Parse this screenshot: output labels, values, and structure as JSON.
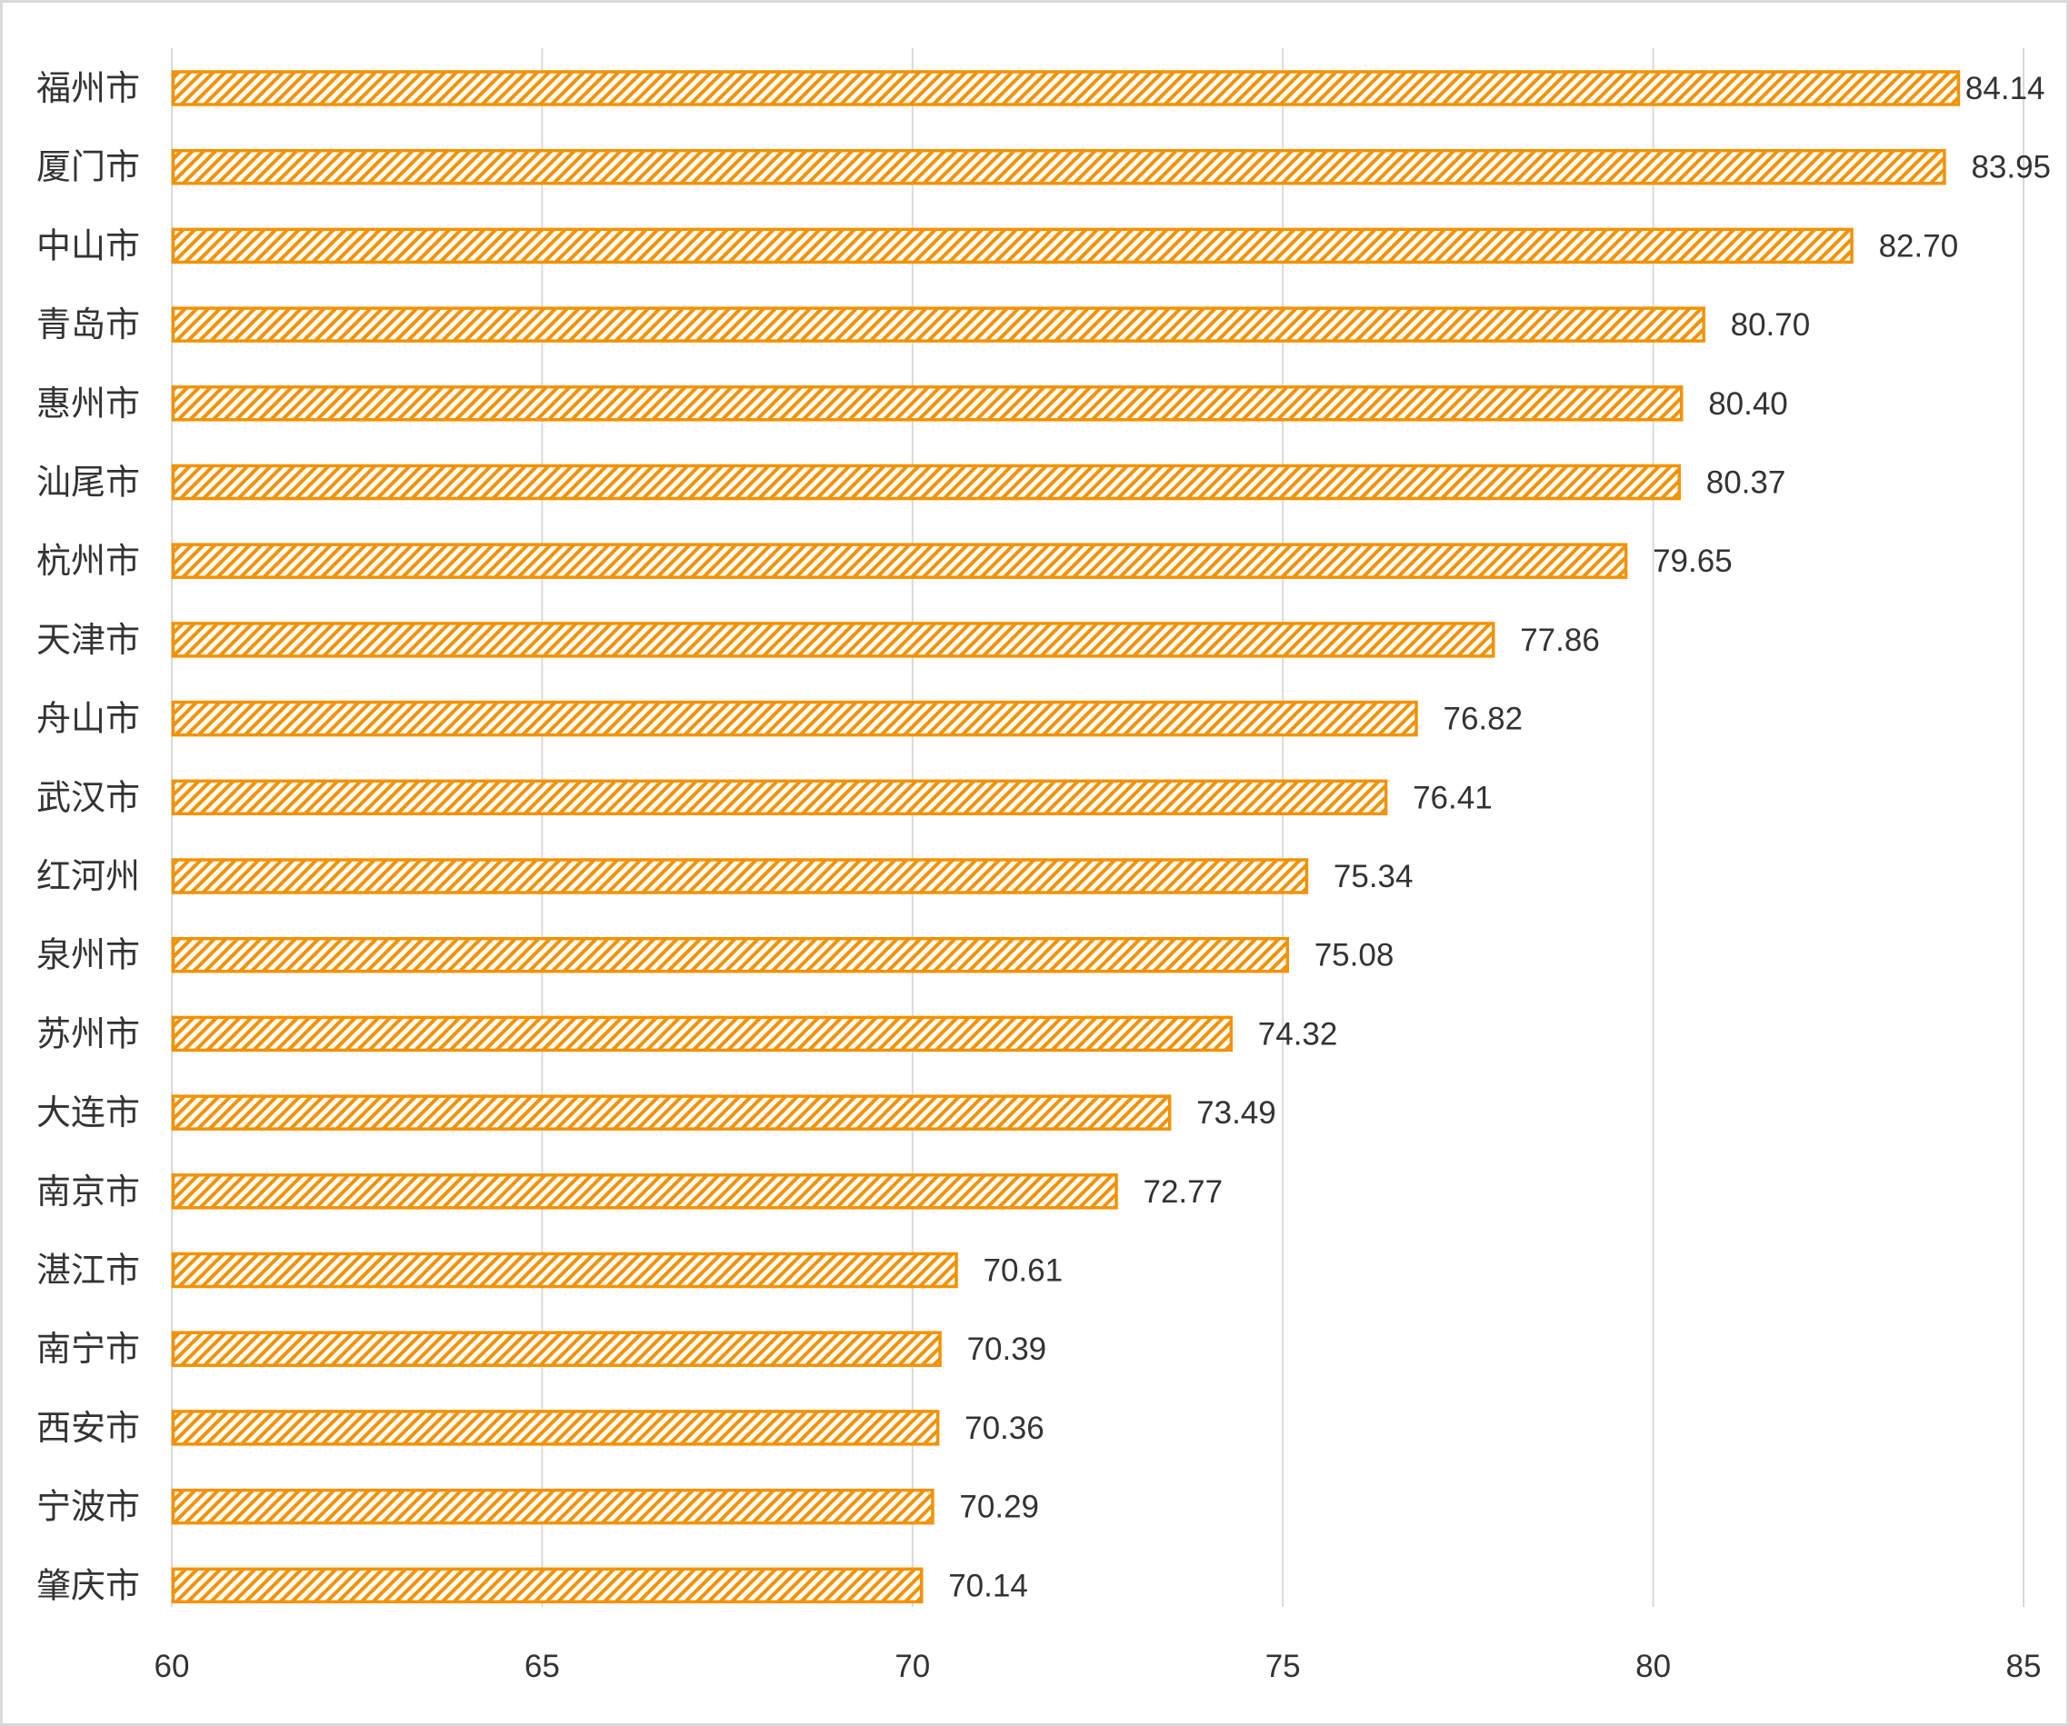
{
  "chart_data": {
    "type": "bar",
    "orientation": "horizontal",
    "categories": [
      "福州市",
      "厦门市",
      "中山市",
      "青岛市",
      "惠州市",
      "汕尾市",
      "杭州市",
      "天津市",
      "舟山市",
      "武汉市",
      "红河州",
      "泉州市",
      "苏州市",
      "大连市",
      "南京市",
      "湛江市",
      "南宁市",
      "西安市",
      "宁波市",
      "肇庆市"
    ],
    "values": [
      84.14,
      83.95,
      82.7,
      80.7,
      80.4,
      80.37,
      79.65,
      77.86,
      76.82,
      76.41,
      75.34,
      75.08,
      74.32,
      73.49,
      72.77,
      70.61,
      70.39,
      70.36,
      70.29,
      70.14
    ],
    "value_labels": [
      "84.14",
      "83.95",
      "82.70",
      "80.70",
      "80.40",
      "80.37",
      "79.65",
      "77.86",
      "76.82",
      "76.41",
      "75.34",
      "75.08",
      "74.32",
      "73.49",
      "72.77",
      "70.61",
      "70.39",
      "70.36",
      "70.29",
      "70.14"
    ],
    "xlim": [
      60,
      85
    ],
    "xticks": [
      60,
      65,
      70,
      75,
      80,
      85
    ],
    "xtick_labels": [
      "60",
      "65",
      "70",
      "75",
      "80",
      "85"
    ],
    "grid": true,
    "title": "",
    "xlabel": "",
    "ylabel": "",
    "bar_color": "#f39200",
    "bar_pattern": "diagonal-hatch",
    "grid_color": "#d9d9d9"
  }
}
